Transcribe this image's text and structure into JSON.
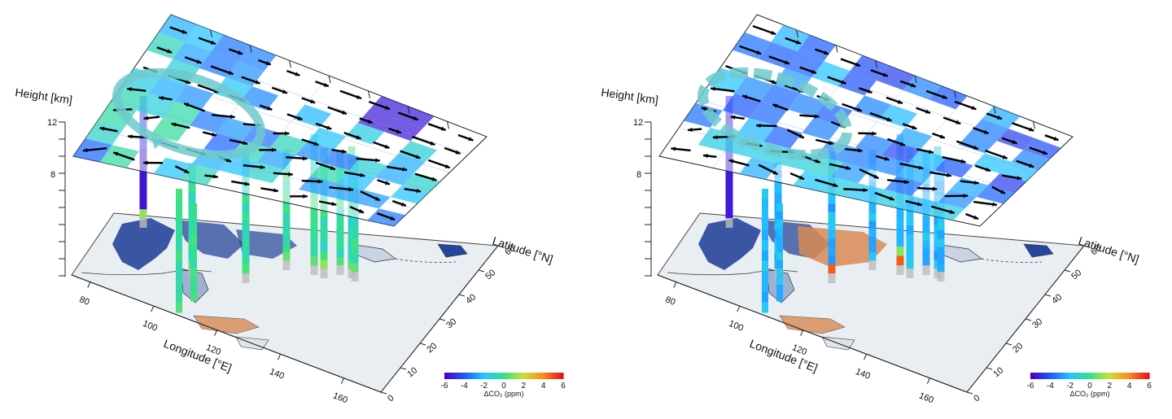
{
  "panels": [
    {
      "id": "left",
      "height_label": "Height [km]",
      "height_ticks": [
        "12",
        "8"
      ],
      "longitude_label": "Longitude [°E]",
      "longitude_ticks": [
        "80",
        "100",
        "120",
        "140",
        "160"
      ],
      "latitude_label": "Latitude [°N]",
      "latitude_ticks": [
        "0",
        "10",
        "20",
        "30",
        "40",
        "50",
        "60"
      ],
      "colorbar": {
        "ticks": [
          "-6",
          "-4",
          "-2",
          "0",
          "2",
          "4",
          "6"
        ],
        "label": "ΔCO₂ (ppm)"
      },
      "vortex_style": "solid",
      "columns_color_mode": "mixed"
    },
    {
      "id": "right",
      "height_label": "Height [km]",
      "height_ticks": [
        "12",
        "8"
      ],
      "longitude_label": "Longitude [°E]",
      "longitude_ticks": [
        "80",
        "100",
        "120",
        "140",
        "160"
      ],
      "latitude_label": "Latitude [°N]",
      "latitude_ticks": [
        "0",
        "10",
        "20",
        "30",
        "40",
        "50",
        "60"
      ],
      "colorbar": {
        "ticks": [
          "-6",
          "-4",
          "-2",
          "0",
          "2",
          "4",
          "6"
        ],
        "label": "ΔCO₂ (ppm)"
      },
      "vortex_style": "dashed",
      "columns_color_mode": "blue"
    }
  ],
  "colors": {
    "colormap": [
      "#4b00c8",
      "#1e5cff",
      "#25c6ff",
      "#37e08a",
      "#c9e13a",
      "#ff8b1a",
      "#e21717"
    ],
    "vortex": "#6fc9cc",
    "ground": "#e9eef2",
    "land_negative": "#27459a",
    "land_positive": "#d98a55"
  }
}
